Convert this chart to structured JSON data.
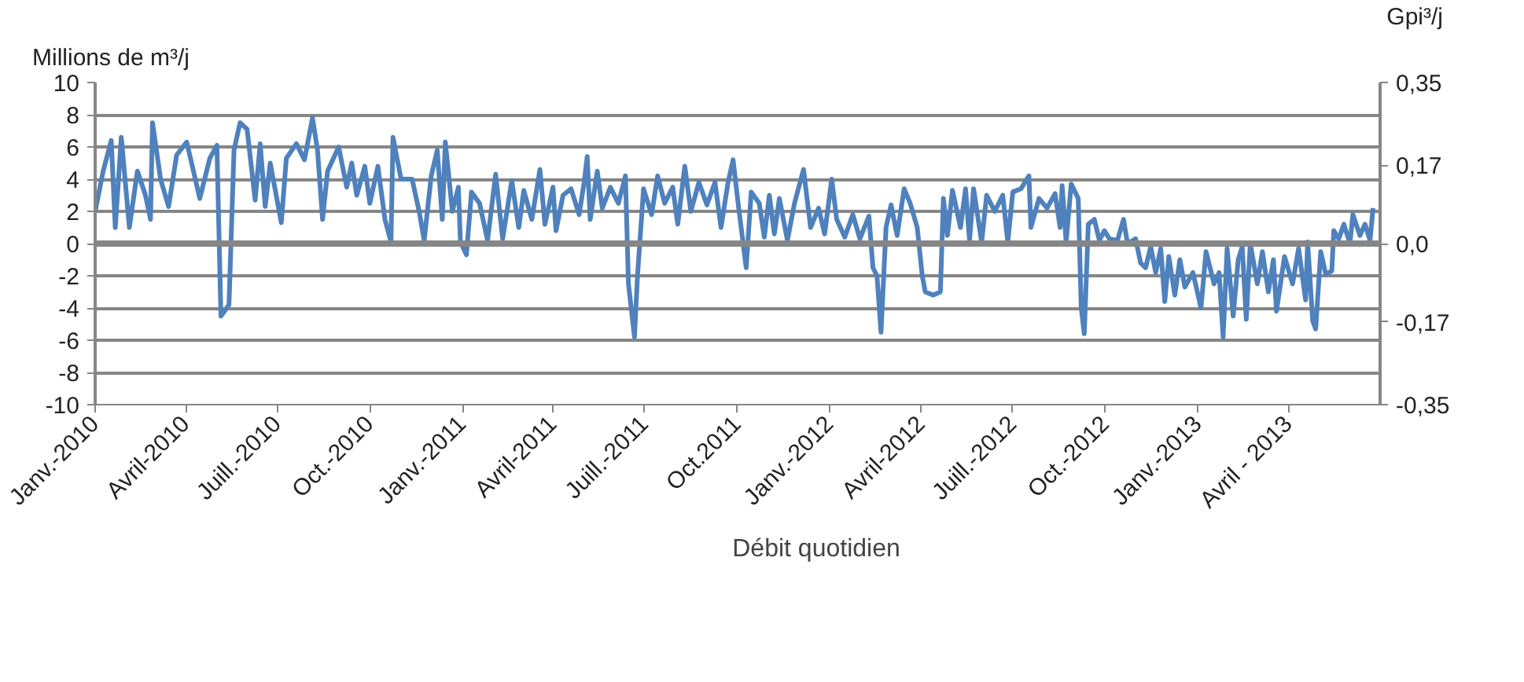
{
  "chart_data": {
    "type": "line",
    "ylabel": "Millions de m³/j",
    "y2label": "Gpi³/j",
    "x": [
      "2010-01-01",
      "2010-01-09",
      "2010-01-17",
      "2010-01-21",
      "2010-01-27",
      "2010-02-04",
      "2010-02-12",
      "2010-02-20",
      "2010-02-25",
      "2010-02-27",
      "2010-03-07",
      "2010-03-15",
      "2010-03-23",
      "2010-04-02",
      "2010-04-15",
      "2010-04-25",
      "2010-05-02",
      "2010-05-06",
      "2010-05-14",
      "2010-05-19",
      "2010-05-25",
      "2010-06-01",
      "2010-06-09",
      "2010-06-14",
      "2010-06-19",
      "2010-06-24",
      "2010-07-05",
      "2010-07-10",
      "2010-07-20",
      "2010-07-28",
      "2010-08-05",
      "2010-08-10",
      "2010-08-15",
      "2010-08-20",
      "2010-08-31",
      "2010-09-08",
      "2010-09-13",
      "2010-09-18",
      "2010-09-26",
      "2010-10-01",
      "2010-10-09",
      "2010-10-16",
      "2010-10-22",
      "2010-10-24",
      "2010-11-01",
      "2010-11-12",
      "2010-11-19",
      "2010-11-24",
      "2010-12-01",
      "2010-12-07",
      "2010-12-12",
      "2010-12-15",
      "2010-12-22",
      "2010-12-28",
      "2010-12-30",
      "2011-01-05",
      "2011-01-10",
      "2011-01-18",
      "2011-01-26",
      "2011-02-03",
      "2011-02-10",
      "2011-02-19",
      "2011-02-26",
      "2011-03-03",
      "2011-03-11",
      "2011-03-19",
      "2011-03-24",
      "2011-04-01",
      "2011-04-04",
      "2011-04-11",
      "2011-04-19",
      "2011-04-27",
      "2011-05-02",
      "2011-05-05",
      "2011-05-08",
      "2011-05-15",
      "2011-05-20",
      "2011-05-28",
      "2011-06-05",
      "2011-06-12",
      "2011-06-15",
      "2011-06-21",
      "2011-06-24",
      "2011-06-30",
      "2011-07-08",
      "2011-07-14",
      "2011-07-21",
      "2011-07-29",
      "2011-08-03",
      "2011-08-10",
      "2011-08-16",
      "2011-08-24",
      "2011-09-01",
      "2011-09-09",
      "2011-09-15",
      "2011-09-22",
      "2011-09-27",
      "2011-10-02",
      "2011-10-10",
      "2011-10-15",
      "2011-10-23",
      "2011-10-28",
      "2011-11-02",
      "2011-11-07",
      "2011-11-12",
      "2011-11-20",
      "2011-11-27",
      "2011-12-06",
      "2011-12-13",
      "2011-12-21",
      "2011-12-27",
      "2012-01-03",
      "2012-01-08",
      "2012-01-16",
      "2012-01-24",
      "2012-01-31",
      "2012-02-09",
      "2012-02-13",
      "2012-02-17",
      "2012-02-21",
      "2012-02-26",
      "2012-03-02",
      "2012-03-08",
      "2012-03-15",
      "2012-03-21",
      "2012-03-28",
      "2012-04-02",
      "2012-04-05",
      "2012-04-13",
      "2012-04-20",
      "2012-04-23",
      "2012-04-27",
      "2012-05-02",
      "2012-05-10",
      "2012-05-15",
      "2012-05-19",
      "2012-05-23",
      "2012-05-31",
      "2012-06-05",
      "2012-06-13",
      "2012-06-21",
      "2012-06-26",
      "2012-07-01",
      "2012-07-09",
      "2012-07-17",
      "2012-07-19",
      "2012-07-27",
      "2012-08-04",
      "2012-08-12",
      "2012-08-17",
      "2012-08-19",
      "2012-08-23",
      "2012-08-28",
      "2012-09-04",
      "2012-09-07",
      "2012-09-10",
      "2012-09-14",
      "2012-09-20",
      "2012-09-25",
      "2012-09-30",
      "2012-10-05",
      "2012-10-13",
      "2012-10-19",
      "2012-10-23",
      "2012-10-31",
      "2012-11-05",
      "2012-11-10",
      "2012-11-15",
      "2012-11-20",
      "2012-11-25",
      "2012-11-29",
      "2012-12-03",
      "2012-12-09",
      "2012-12-14",
      "2012-12-19",
      "2012-12-27",
      "2013-01-04",
      "2013-01-09",
      "2013-01-17",
      "2013-01-22",
      "2013-01-26",
      "2013-01-30",
      "2013-02-05",
      "2013-02-10",
      "2013-02-14",
      "2013-02-18",
      "2013-02-22",
      "2013-03-01",
      "2013-03-06",
      "2013-03-12",
      "2013-03-17",
      "2013-03-20",
      "2013-03-28",
      "2013-04-05",
      "2013-04-11",
      "2013-04-18",
      "2013-04-20",
      "2013-04-25",
      "2013-04-28",
      "2013-05-03",
      "2013-05-08",
      "2013-05-14",
      "2013-05-16",
      "2013-05-21",
      "2013-05-26",
      "2013-06-01",
      "2013-06-04",
      "2013-06-11",
      "2013-06-16",
      "2013-06-21",
      "2013-06-24"
    ],
    "series": [
      {
        "name": "Débit quotidien",
        "color": "#4f81bd",
        "values": [
          2.0,
          4.5,
          6.4,
          1.0,
          6.6,
          1.0,
          4.5,
          3.0,
          1.5,
          7.5,
          4.0,
          2.3,
          5.5,
          6.3,
          2.8,
          5.3,
          6.1,
          -4.5,
          -3.8,
          5.8,
          7.5,
          7.1,
          2.7,
          6.2,
          2.3,
          5.0,
          1.3,
          5.3,
          6.2,
          5.2,
          7.8,
          5.8,
          1.5,
          4.5,
          6.0,
          3.5,
          5.0,
          3.0,
          4.8,
          2.5,
          4.8,
          1.5,
          0.1,
          6.6,
          4.0,
          4.0,
          2.0,
          0.2,
          4.2,
          5.8,
          1.5,
          6.3,
          2.0,
          3.5,
          0.1,
          -0.7,
          3.2,
          2.5,
          0.2,
          4.3,
          0.3,
          3.9,
          1.0,
          3.3,
          1.5,
          4.6,
          1.2,
          3.5,
          0.8,
          3.0,
          3.4,
          1.8,
          3.8,
          5.4,
          1.5,
          4.5,
          2.2,
          3.5,
          2.5,
          4.2,
          -2.5,
          -5.8,
          -2.0,
          3.4,
          1.8,
          4.2,
          2.5,
          3.5,
          1.2,
          4.8,
          2.0,
          3.8,
          2.4,
          3.8,
          1.0,
          3.8,
          5.2,
          2.5,
          -1.5,
          3.2,
          2.5,
          0.4,
          3.0,
          0.6,
          2.8,
          0.2,
          2.5,
          4.6,
          1.0,
          2.2,
          0.6,
          4.0,
          1.5,
          0.4,
          1.8,
          0.3,
          1.7,
          -1.5,
          -2.0,
          -5.5,
          1.0,
          2.4,
          0.5,
          3.4,
          2.5,
          1.0,
          -2.0,
          -3.0,
          -3.2,
          -3.0,
          2.8,
          0.5,
          3.3,
          1.0,
          3.4,
          0.2,
          3.4,
          0.1,
          3.0,
          2.0,
          3.0,
          0.1,
          3.2,
          3.4,
          4.2,
          1.0,
          2.8,
          2.2,
          3.1,
          1.0,
          3.6,
          0.1,
          3.7,
          2.8,
          -4.0,
          -5.6,
          1.2,
          1.5,
          0.2,
          0.8,
          0.3,
          0.2,
          1.5,
          0.0,
          0.3,
          -1.2,
          -1.5,
          -0.2,
          -1.8,
          -0.3,
          -3.6,
          -0.8,
          -3.2,
          -1.0,
          -2.7,
          -1.8,
          -4.0,
          -0.5,
          -2.5,
          -1.8,
          -5.8,
          -0.3,
          -4.5,
          -1.0,
          -0.2,
          -4.7,
          0.0,
          -2.5,
          -0.5,
          -3.0,
          -1.0,
          -4.2,
          -0.8,
          -2.5,
          -0.3,
          -3.5,
          0.1,
          -4.8,
          -5.3,
          -0.5,
          -1.9,
          -1.7,
          0.8,
          0.3,
          1.2,
          0.0,
          1.8,
          0.5,
          1.2,
          0.2,
          2.2
        ]
      }
    ],
    "xlim": [
      "2010-01-01",
      "2013-07-01"
    ],
    "xticks": [
      {
        "value": "2010-01-01",
        "label": "Janv.-2010"
      },
      {
        "value": "2010-04-01",
        "label": "Avril-2010"
      },
      {
        "value": "2010-07-01",
        "label": "Juill.-2010"
      },
      {
        "value": "2010-10-01",
        "label": "Oct.-2010"
      },
      {
        "value": "2011-01-01",
        "label": "Janv.-2011"
      },
      {
        "value": "2011-04-01",
        "label": "Avril-2011"
      },
      {
        "value": "2011-07-01",
        "label": "Juill.-2011"
      },
      {
        "value": "2011-10-01",
        "label": "Oct.2011"
      },
      {
        "value": "2012-01-01",
        "label": "Janv.-2012"
      },
      {
        "value": "2012-04-01",
        "label": "Avril-2012"
      },
      {
        "value": "2012-07-01",
        "label": "Juill.-2012"
      },
      {
        "value": "2012-10-01",
        "label": "Oct.-2012"
      },
      {
        "value": "2013-01-01",
        "label": "Janv.-2013"
      },
      {
        "value": "2013-04-01",
        "label": "Avril - 2013"
      }
    ],
    "ylim": [
      -10,
      10
    ],
    "yticks": [
      -10,
      -8,
      -6,
      -4,
      -2,
      0,
      2,
      4,
      6,
      8,
      10
    ],
    "y2lim": [
      -0.35,
      0.35
    ],
    "y2ticks": [
      {
        "value": -0.35,
        "label": "-0,35"
      },
      {
        "value": -0.17,
        "label": "-0,17"
      },
      {
        "value": 0,
        "label": "0,0"
      },
      {
        "value": 0.17,
        "label": "0,17"
      },
      {
        "value": 0.35,
        "label": "0,35"
      }
    ],
    "ref_lines": [
      {
        "axis": "y",
        "value": 0,
        "color": "#868686"
      }
    ],
    "grid": "y",
    "legend": "bottom",
    "line_style": "solid"
  }
}
